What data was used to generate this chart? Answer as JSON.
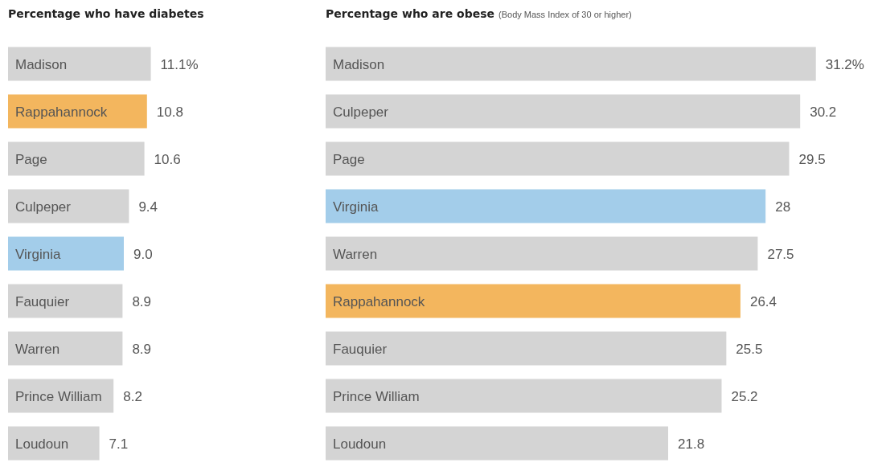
{
  "chart_data": [
    {
      "type": "bar",
      "orientation": "horizontal",
      "title": "Percentage who have diabetes",
      "categories": [
        "Madison",
        "Rappahannock",
        "Page",
        "Culpeper",
        "Virginia",
        "Fauquier",
        "Warren",
        "Prince William",
        "Loudoun"
      ],
      "values": [
        11.1,
        10.8,
        10.6,
        9.4,
        9.0,
        8.9,
        8.9,
        8.2,
        7.1
      ],
      "value_labels": [
        "11.1%",
        "10.8",
        "10.6",
        "9.4",
        "9.0",
        "8.9",
        "8.9",
        "8.2",
        "7.1"
      ],
      "colors": [
        "#d4d4d4",
        "#f3b65e",
        "#d4d4d4",
        "#d4d4d4",
        "#a3cdea",
        "#d4d4d4",
        "#d4d4d4",
        "#d4d4d4",
        "#d4d4d4"
      ],
      "tick_labels": "y",
      "legend": false
    },
    {
      "type": "bar",
      "orientation": "horizontal",
      "title": "Percentage who are obese",
      "subtitle": "(Body Mass Index of 30 or higher)",
      "categories": [
        "Madison",
        "Culpeper",
        "Page",
        "Virginia",
        "Warren",
        "Rappahannock",
        "Fauquier",
        "Prince William",
        "Loudoun"
      ],
      "values": [
        31.2,
        30.2,
        29.5,
        28,
        27.5,
        26.4,
        25.5,
        25.2,
        21.8
      ],
      "value_labels": [
        "31.2%",
        "30.2",
        "29.5",
        "28",
        "27.5",
        "26.4",
        "25.5",
        "25.2",
        "21.8"
      ],
      "colors": [
        "#d4d4d4",
        "#d4d4d4",
        "#d4d4d4",
        "#a3cdea",
        "#d4d4d4",
        "#f3b65e",
        "#d4d4d4",
        "#d4d4d4",
        "#d4d4d4"
      ],
      "tick_labels": "y",
      "legend": false
    }
  ]
}
